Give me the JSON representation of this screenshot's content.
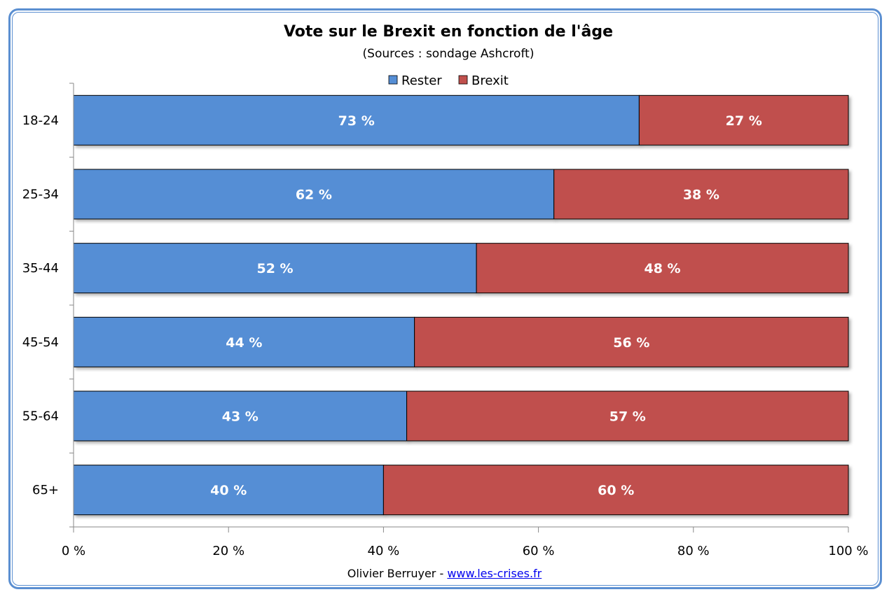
{
  "chart_data": {
    "type": "bar",
    "orientation": "horizontal",
    "stacked": true,
    "title": "Vote sur le Brexit en fonction de l'âge",
    "subtitle": "(Sources : sondage Ashcroft)",
    "categories": [
      "18-24",
      "25-34",
      "35-44",
      "45-54",
      "55-64",
      "65+"
    ],
    "series": [
      {
        "name": "Rester",
        "color": "#558ed5",
        "values": [
          73,
          62,
          52,
          44,
          43,
          40
        ]
      },
      {
        "name": "Brexit",
        "color": "#c0504d",
        "values": [
          27,
          38,
          48,
          56,
          57,
          60
        ]
      }
    ],
    "xticks": [
      "0 %",
      "20 %",
      "40 %",
      "60 %",
      "80 %",
      "100 %"
    ],
    "xlim": [
      0,
      100
    ],
    "legend_position": "top",
    "grid": false
  },
  "credit": {
    "author": "Olivier Berruyer",
    "separator": "-",
    "link": "www.les-crises.fr"
  }
}
